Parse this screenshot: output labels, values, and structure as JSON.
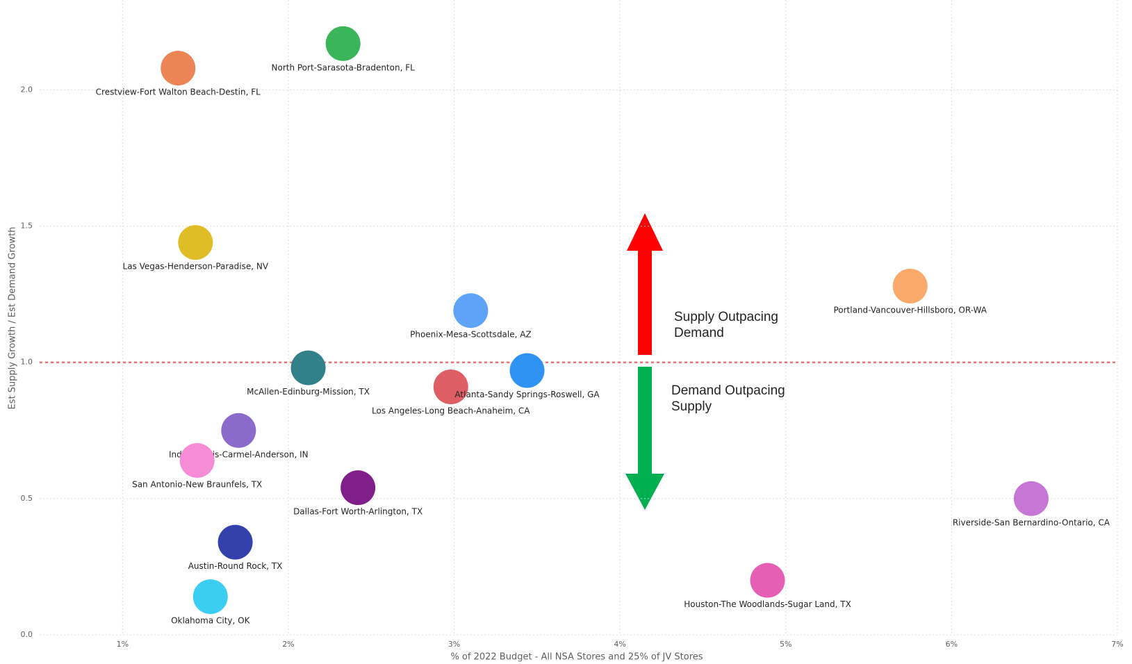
{
  "chart_data": {
    "type": "scatter",
    "x_label": "% of 2022 Budget - All NSA Stores and 25% of JV Stores",
    "y_label": "Est Supply Growth / Est Demand Growth",
    "xlim": [
      0.5,
      7
    ],
    "ylim": [
      0,
      2.33
    ],
    "xticks": [
      {
        "value": 1,
        "label": "1%"
      },
      {
        "value": 2,
        "label": "2%"
      },
      {
        "value": 3,
        "label": "3%"
      },
      {
        "value": 4,
        "label": "4%"
      },
      {
        "value": 5,
        "label": "5%"
      },
      {
        "value": 6,
        "label": "6%"
      },
      {
        "value": 7,
        "label": "7%"
      }
    ],
    "yticks": [
      {
        "value": 0,
        "label": "0.0"
      },
      {
        "value": 0.5,
        "label": "0.5"
      },
      {
        "value": 1,
        "label": "1.0"
      },
      {
        "value": 1.5,
        "label": "1.5"
      },
      {
        "value": 2,
        "label": "2.0"
      }
    ],
    "grid": true,
    "reference_line": {
      "value": 1,
      "color": "#f4716c"
    },
    "points": [
      {
        "name": "Crestview-Fort Walton Beach-Destin, FL",
        "x": 1.335,
        "y": 2.08,
        "color": "#ec8455"
      },
      {
        "name": "North Port-Sarasota-Bradenton, FL",
        "x": 2.33,
        "y": 2.17,
        "color": "#3bb55a"
      },
      {
        "name": "Las Vegas-Henderson-Paradise, NV",
        "x": 1.44,
        "y": 1.44,
        "color": "#dfbd27"
      },
      {
        "name": "Phoenix-Mesa-Scottsdale, AZ",
        "x": 3.1,
        "y": 1.19,
        "color": "#5ea3f7"
      },
      {
        "name": "Portland-Vancouver-Hillsboro, OR-WA",
        "x": 5.75,
        "y": 1.28,
        "color": "#fba96a"
      },
      {
        "name": "McAllen-Edinburg-Mission, TX",
        "x": 2.12,
        "y": 0.98,
        "color": "#32808a"
      },
      {
        "name": "Los Angeles-Long Beach-Anaheim, CA",
        "x": 2.98,
        "y": 0.91,
        "color": "#df5e66"
      },
      {
        "name": "Atlanta-Sandy Springs-Roswell, GA",
        "x": 3.44,
        "y": 0.97,
        "color": "#2e93f3"
      },
      {
        "name": "Indianapolis-Carmel-Anderson, IN",
        "x": 1.7,
        "y": 0.75,
        "color": "#8a6acb"
      },
      {
        "name": "San Antonio-New Braunfels, TX",
        "x": 1.45,
        "y": 0.64,
        "color": "#f68bd6"
      },
      {
        "name": "Dallas-Fort Worth-Arlington, TX",
        "x": 2.42,
        "y": 0.54,
        "color": "#801e8a"
      },
      {
        "name": "Austin-Round Rock, TX",
        "x": 1.68,
        "y": 0.34,
        "color": "#3440ac"
      },
      {
        "name": "Oklahoma City, OK",
        "x": 1.53,
        "y": 0.14,
        "color": "#3ccdf2"
      },
      {
        "name": "Riverside-San Bernardino-Ontario, CA",
        "x": 6.48,
        "y": 0.5,
        "color": "#c676d4"
      },
      {
        "name": "Houston-The Woodlands-Sugar Land, TX",
        "x": 4.89,
        "y": 0.2,
        "color": "#e55fb5"
      }
    ],
    "annotations": [
      {
        "lines": [
          "Supply Outpacing",
          "Demand"
        ],
        "color": "#ff0000"
      },
      {
        "lines": [
          "Demand Outpacing",
          "Supply"
        ],
        "color": "#00b050"
      }
    ]
  }
}
